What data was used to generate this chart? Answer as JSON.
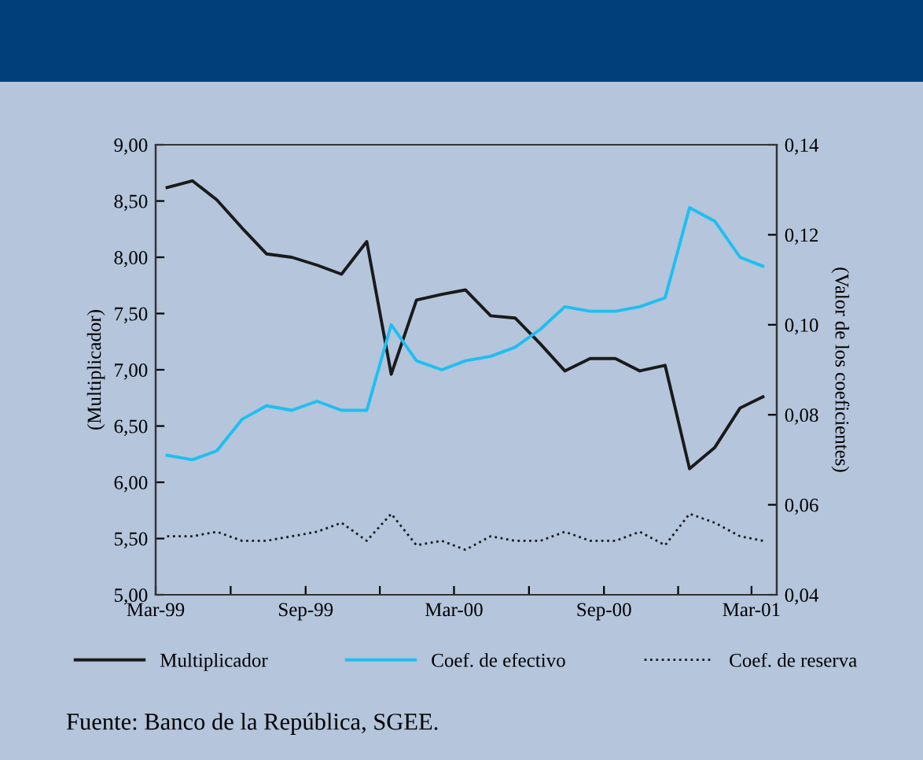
{
  "chart_data": {
    "type": "line",
    "x": [
      "1999-03-15",
      "1999-04-15",
      "1999-05-15",
      "1999-06-15",
      "1999-07-15",
      "1999-08-15",
      "1999-09-15",
      "1999-10-15",
      "1999-11-15",
      "1999-12-15",
      "2000-01-15",
      "2000-02-15",
      "2000-03-15",
      "2000-04-15",
      "2000-05-15",
      "2000-06-15",
      "2000-07-15",
      "2000-08-15",
      "2000-09-15",
      "2000-10-15",
      "2000-11-15",
      "2000-12-15",
      "2001-01-15",
      "2001-02-15",
      "2001-03-15"
    ],
    "series": [
      {
        "name": "Multiplicador",
        "color": "#1a1a1a",
        "line_style": "solid",
        "values": [
          8.62,
          8.68,
          8.51,
          8.26,
          8.03,
          8.0,
          7.93,
          7.85,
          8.14,
          6.96,
          7.62,
          7.67,
          7.71,
          7.48,
          7.46,
          7.23,
          6.99,
          7.1,
          7.1,
          6.99,
          7.04,
          6.12,
          6.31,
          6.66,
          6.76
        ]
      },
      {
        "name": "Coef. de efectivo",
        "color": "#1ebff0",
        "axis": "y2",
        "line_style": "solid",
        "values": [
          0.071,
          0.07,
          0.072,
          0.079,
          0.082,
          0.081,
          0.083,
          0.081,
          0.081,
          0.1,
          0.092,
          0.09,
          0.092,
          0.093,
          0.095,
          0.099,
          0.104,
          0.103,
          0.103,
          0.104,
          0.106,
          0.126,
          0.123,
          0.115,
          0.113
        ]
      },
      {
        "name": "Coef. de reserva",
        "color": "#1a1a1a",
        "axis": "y2",
        "line_style": "dotted",
        "values": [
          0.053,
          0.053,
          0.054,
          0.052,
          0.052,
          0.053,
          0.054,
          0.056,
          0.052,
          0.058,
          0.051,
          0.052,
          0.05,
          0.053,
          0.052,
          0.052,
          0.054,
          0.052,
          0.052,
          0.054,
          0.051,
          0.058,
          0.056,
          0.053,
          0.052
        ]
      }
    ],
    "ylabel": "(Multiplicador)",
    "y2label": "(Valor de los coeficientes)",
    "xlim": [
      "1999-03-01",
      "2001-04-01"
    ],
    "xticks": [
      {
        "value": "1999-03-01",
        "label": "Mar-99"
      },
      {
        "value": "1999-06-01",
        "label": null
      },
      {
        "value": "1999-09-01",
        "label": "Sep-99"
      },
      {
        "value": "1999-12-01",
        "label": null
      },
      {
        "value": "2000-03-01",
        "label": "Mar-00"
      },
      {
        "value": "2000-06-01",
        "label": null
      },
      {
        "value": "2000-09-01",
        "label": "Sep-00"
      },
      {
        "value": "2000-12-01",
        "label": null
      },
      {
        "value": "2001-03-01",
        "label": "Mar-01"
      }
    ],
    "ylim": [
      5,
      9
    ],
    "yticks": [
      {
        "value": 5,
        "label": "5,00"
      },
      {
        "value": 5.5,
        "label": "5,50"
      },
      {
        "value": 6,
        "label": "6,00"
      },
      {
        "value": 6.5,
        "label": "6,50"
      },
      {
        "value": 7,
        "label": "7,00"
      },
      {
        "value": 7.5,
        "label": "7,50"
      },
      {
        "value": 8,
        "label": "8,00"
      },
      {
        "value": 8.5,
        "label": "8,50"
      },
      {
        "value": 9,
        "label": "9,00"
      }
    ],
    "y2lim": [
      0.04,
      0.14
    ],
    "y2ticks": [
      {
        "value": 0.04,
        "label": "0,04"
      },
      {
        "value": 0.06,
        "label": "0,06"
      },
      {
        "value": 0.08,
        "label": "0,08"
      },
      {
        "value": 0.1,
        "label": "0,10"
      },
      {
        "value": 0.12,
        "label": "0,12"
      },
      {
        "value": 0.14,
        "label": "0,14"
      }
    ],
    "grid": false,
    "legend": "bottom",
    "marker": "none",
    "annotations": [
      "Fuente: Banco de la República, SGEE."
    ]
  }
}
